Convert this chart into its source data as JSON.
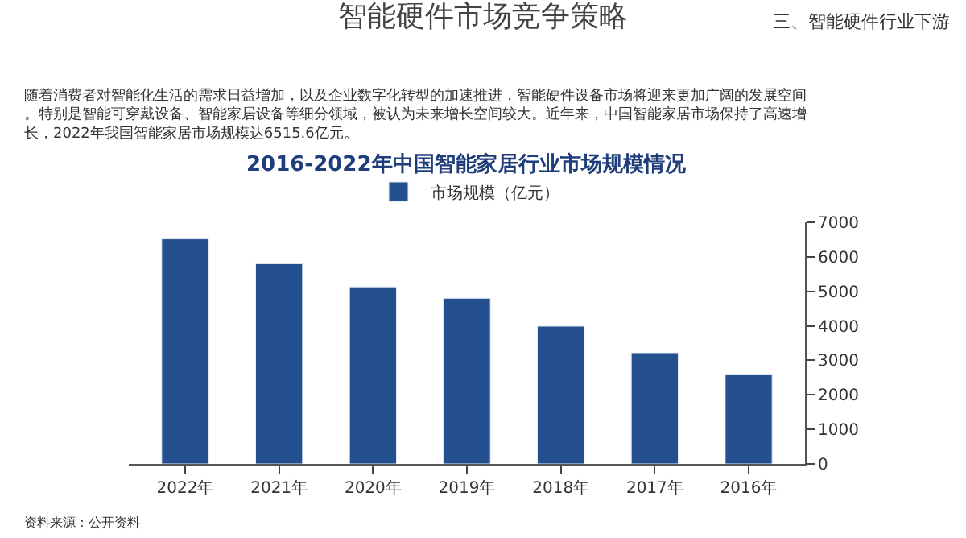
{
  "chart_data": {
    "type": "bar",
    "title": "智能硬件市场竞争策略",
    "subtitle": "2016-2022年中国智能家居行业市场规模情况",
    "categories": [
      "2022年",
      "2021年",
      "2020年",
      "2019年",
      "2018年",
      "2017年",
      "2016年"
    ],
    "series": [
      {
        "name": "市场规模（亿元）",
        "color": "#24508f",
        "values": [
          6520,
          5800,
          5130,
          4800,
          3990,
          3220,
          2600
        ]
      }
    ],
    "ylim": [
      0,
      7000
    ],
    "yticks": [
      0,
      1000,
      2000,
      3000,
      4000,
      5000,
      6000,
      7000
    ],
    "legend": "top",
    "annotations": [
      "三、智能硬件行业下游",
      "随着消费者对智能化生活的需求日益增加，以及企业数字化转型的加速推进，智能硬件设备市场将迎来更加广阔的发展空间。特别是智能可穿戴设备、智能家居设备等细分领域，被认为未来增长空间较大。近年来，中国智能家居市场保持了高速增长，2022年我国智能家居市场规模达6515.6亿元。",
      "资料来源：公开资料"
    ]
  }
}
